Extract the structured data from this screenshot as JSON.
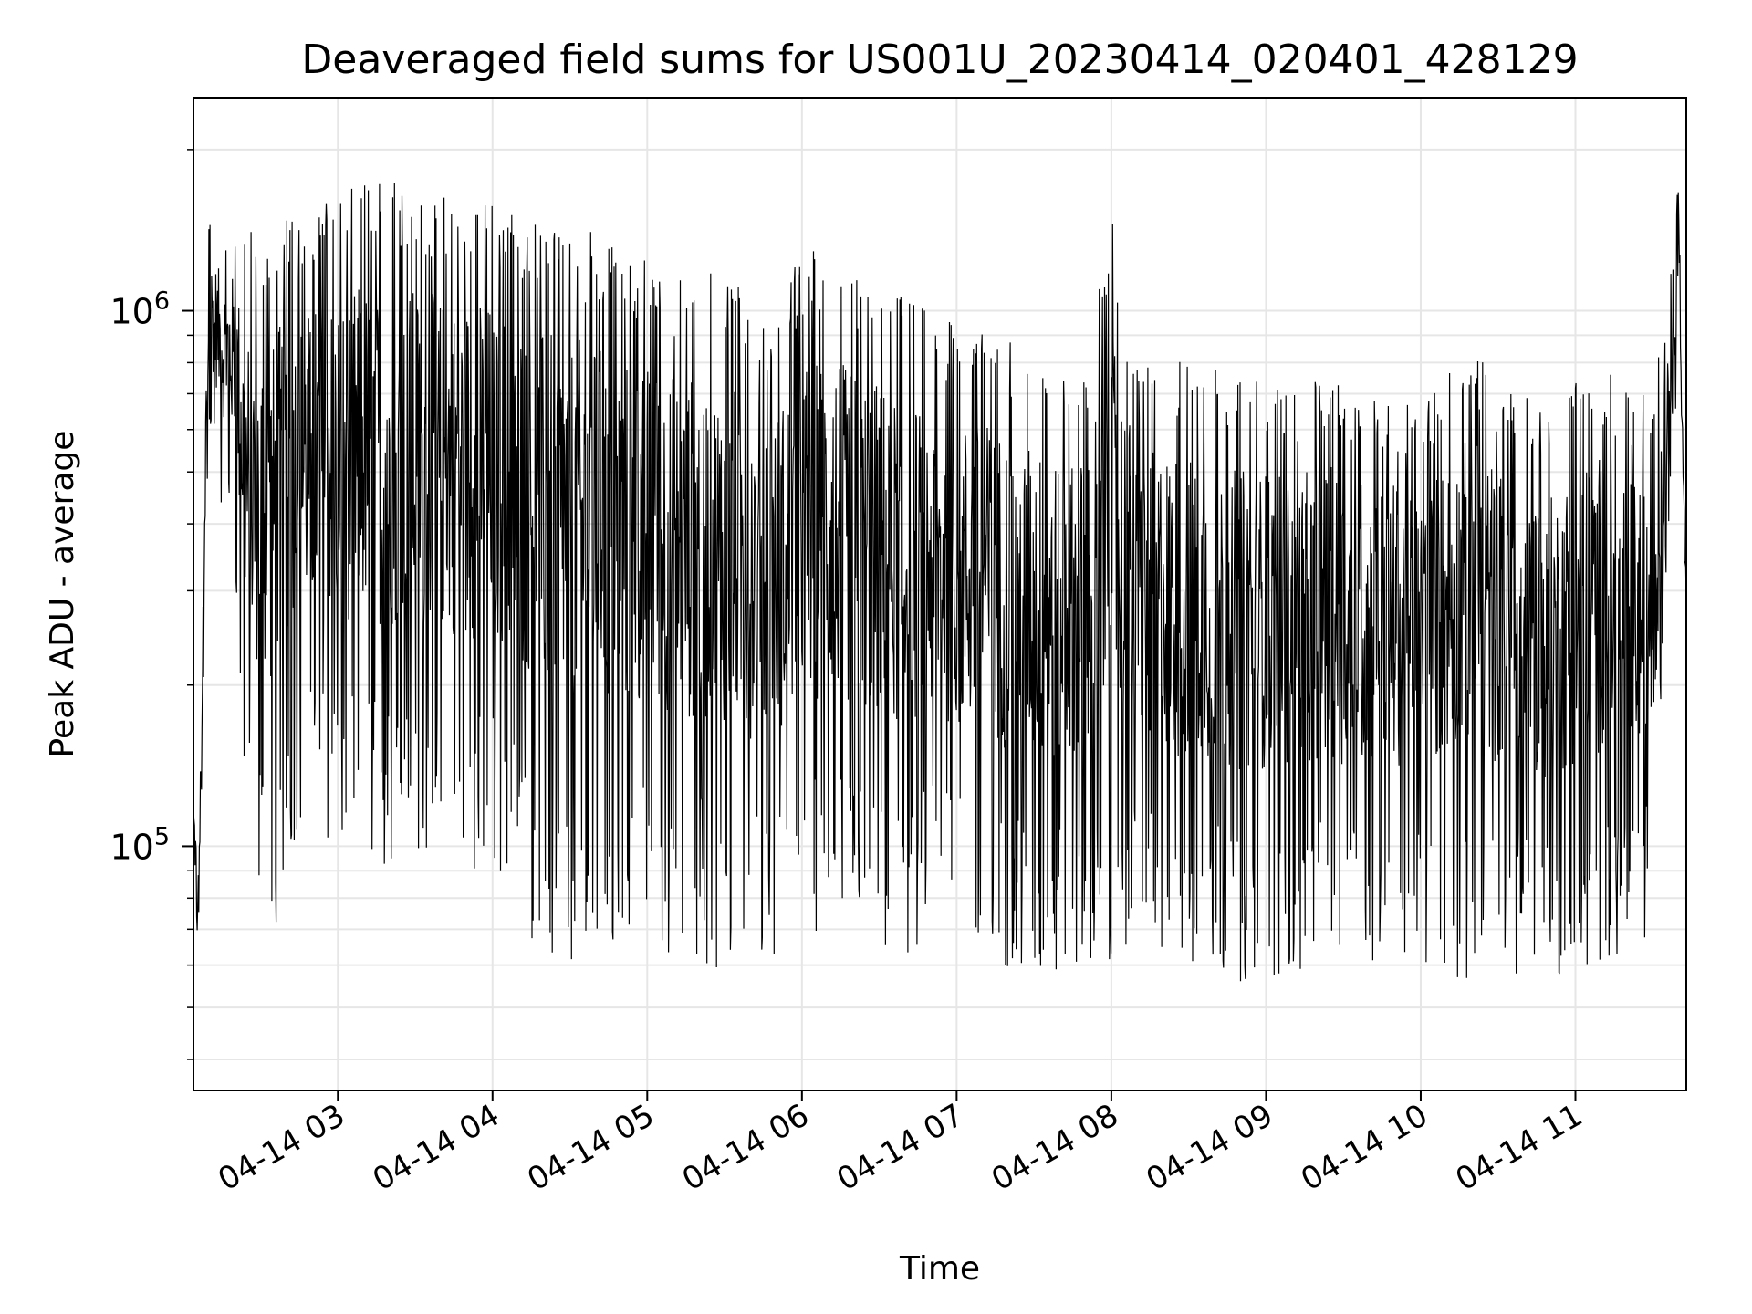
{
  "chart_data": {
    "type": "line",
    "title": "Deaveraged field sums for US001U_20230414_020401_428129",
    "xlabel": "Time",
    "ylabel": "Peak ADU - average",
    "yscale": "log",
    "ylim": [
      35000,
      2500000
    ],
    "xlim": [
      "04-14 02:04",
      "04-14 11:43"
    ],
    "x_ticks": [
      "04-14 03",
      "04-14 04",
      "04-14 05",
      "04-14 06",
      "04-14 07",
      "04-14 08",
      "04-14 09",
      "04-14 10",
      "04-14 11"
    ],
    "y_ticks": [
      {
        "value": 100000,
        "base": "10",
        "exp": "5"
      },
      {
        "value": 1000000,
        "base": "10",
        "exp": "6"
      }
    ],
    "grid": true,
    "line_color": "#000000",
    "series": [
      {
        "x": [
          "04-14 02:04",
          "04-14 02:06",
          "04-14 02:10",
          "04-14 02:15",
          "04-14 02:20",
          "04-14 02:25",
          "04-14 02:30",
          "04-14 02:35",
          "04-14 02:40",
          "04-14 02:45",
          "04-14 02:50",
          "04-14 02:55",
          "04-14 03:00",
          "04-14 03:10",
          "04-14 03:20",
          "04-14 03:30",
          "04-14 03:40",
          "04-14 03:50",
          "04-14 04:00",
          "04-14 04:10",
          "04-14 04:20",
          "04-14 04:30",
          "04-14 04:40",
          "04-14 04:50",
          "04-14 05:00",
          "04-14 05:10",
          "04-14 05:20",
          "04-14 05:30",
          "04-14 05:40",
          "04-14 05:50",
          "04-14 06:00",
          "04-14 06:10",
          "04-14 06:20",
          "04-14 06:30",
          "04-14 06:40",
          "04-14 06:50",
          "04-14 07:00",
          "04-14 07:10",
          "04-14 07:20",
          "04-14 07:30",
          "04-14 07:40",
          "04-14 07:50",
          "04-14 08:00",
          "04-14 08:10",
          "04-14 08:20",
          "04-14 08:30",
          "04-14 08:40",
          "04-14 08:50",
          "04-14 09:00",
          "04-14 09:10",
          "04-14 09:20",
          "04-14 09:30",
          "04-14 09:40",
          "04-14 09:50",
          "04-14 10:00",
          "04-14 10:10",
          "04-14 10:20",
          "04-14 10:30",
          "04-14 10:40",
          "04-14 10:50",
          "04-14 11:00",
          "04-14 11:10",
          "04-14 11:20",
          "04-14 11:30",
          "04-14 11:35",
          "04-14 11:40",
          "04-14 11:43"
        ],
        "peaks": [
          140000,
          95000,
          1500000,
          1400000,
          1450000,
          1400000,
          1450000,
          1400000,
          1600000,
          1450000,
          1550000,
          1650000,
          1700000,
          1750000,
          1800000,
          1750000,
          1650000,
          1700000,
          1600000,
          1550000,
          1500000,
          1450000,
          1400000,
          1300000,
          1250000,
          1200000,
          1200000,
          1150000,
          1100000,
          1000000,
          1300000,
          1300000,
          1200000,
          1150000,
          1050000,
          1000000,
          950000,
          950000,
          900000,
          850000,
          800000,
          800000,
          1500000,
          800000,
          850000,
          800000,
          800000,
          750000,
          750000,
          700000,
          750000,
          750000,
          700000,
          700000,
          650000,
          800000,
          900000,
          750000,
          700000,
          650000,
          750000,
          800000,
          700000,
          700000,
          1000000,
          1800000,
          300000
        ],
        "troughs": [
          80000,
          60000,
          600000,
          420000,
          350000,
          85000,
          75000,
          65000,
          90000,
          110000,
          100000,
          100000,
          95000,
          95000,
          90000,
          85000,
          90000,
          85000,
          90000,
          75000,
          60000,
          58000,
          62000,
          60000,
          65000,
          62000,
          58000,
          60000,
          56000,
          60000,
          62000,
          68000,
          64000,
          62000,
          62000,
          66000,
          64000,
          60000,
          58000,
          56000,
          55000,
          55000,
          62000,
          62000,
          58000,
          56000,
          58000,
          55000,
          56000,
          58000,
          60000,
          58000,
          60000,
          59000,
          60000,
          58000,
          55000,
          58000,
          57000,
          56000,
          58000,
          60000,
          62000,
          70000,
          300000,
          800000,
          250000
        ]
      }
    ]
  }
}
